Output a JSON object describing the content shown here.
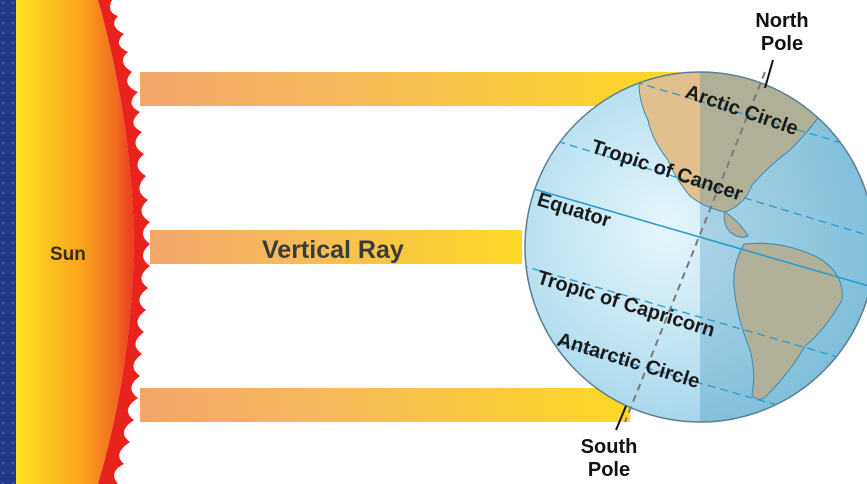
{
  "sun_label": "Sun",
  "ray_label": "Vertical Ray",
  "north_pole": {
    "line1": "North",
    "line2": "Pole"
  },
  "south_pole": {
    "line1": "South",
    "line2": "Pole"
  },
  "circles": {
    "arctic": "Arctic Circle",
    "cancer": "Tropic of Cancer",
    "equator": "Equator",
    "capricorn": "Tropic of Capricorn",
    "antarctic": "Antarctic Circle"
  },
  "colors": {
    "frame": "#1f3a86",
    "ray": "#f7c52a",
    "ocean": "#9fd4ea",
    "land": "#e2c08d",
    "flame": "#e8231e"
  }
}
